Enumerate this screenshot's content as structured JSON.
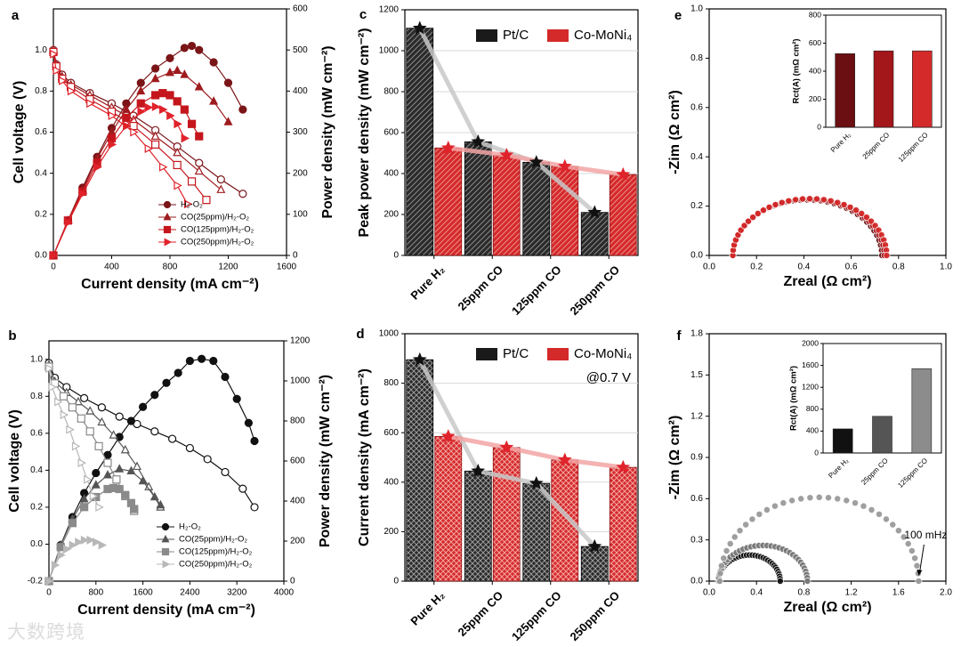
{
  "watermark": {
    "text": "大数跨境"
  },
  "chart_data": [
    {
      "panel": "a",
      "type": "line",
      "xlabel": "Current density (mA cm⁻²)",
      "ylabel": "Cell voltage (V)",
      "y2label": "Power density (mW cm⁻²)",
      "xlim": [
        0,
        1600
      ],
      "ylim": [
        0,
        1.2
      ],
      "y2lim": [
        0,
        600
      ],
      "xticks": [
        0,
        400,
        800,
        1200,
        1600
      ],
      "yticks": [
        0,
        0.2,
        0.4,
        0.6,
        0.8,
        1.0
      ],
      "y2ticks": [
        0,
        100,
        200,
        300,
        400,
        500,
        600
      ],
      "legend": [
        "H₂-O₂",
        "CO(25ppm)/H₂-O₂",
        "CO(125ppm)/H₂-O₂",
        "CO(250ppm)/H₂-O₂"
      ],
      "series": [
        {
          "name": "H₂-O₂",
          "color": "#7a1518",
          "marker": "circle",
          "voltage": {
            "x": [
              0,
              20,
              60,
              120,
              250,
              400,
              550,
              700,
              850,
              1000,
              1150,
              1300
            ],
            "y": [
              1.0,
              0.93,
              0.88,
              0.84,
              0.79,
              0.74,
              0.68,
              0.61,
              0.53,
              0.45,
              0.37,
              0.3
            ]
          },
          "power": {
            "x": [
              0,
              100,
              200,
              300,
              400,
              500,
              600,
              700,
              800,
              900,
              950,
              1000,
              1100,
              1200,
              1300
            ],
            "y": [
              0,
              85,
              165,
              240,
              310,
              370,
              420,
              455,
              480,
              505,
              510,
              500,
              470,
              420,
              355
            ]
          }
        },
        {
          "name": "CO(25ppm)/H₂-O₂",
          "color": "#9e1b1e",
          "marker": "triangle",
          "voltage": {
            "x": [
              0,
              20,
              60,
              120,
              250,
              400,
              550,
              700,
              850,
              1000,
              1150
            ],
            "y": [
              1.0,
              0.93,
              0.87,
              0.83,
              0.78,
              0.72,
              0.66,
              0.58,
              0.5,
              0.41,
              0.32
            ]
          },
          "power": {
            "x": [
              0,
              100,
              200,
              300,
              400,
              500,
              600,
              700,
              800,
              850,
              900,
              1000,
              1100,
              1200
            ],
            "y": [
              0,
              85,
              160,
              235,
              300,
              355,
              400,
              430,
              445,
              450,
              440,
              410,
              375,
              325
            ]
          }
        },
        {
          "name": "CO(125ppm)/H₂-O₂",
          "color": "#c4161c",
          "marker": "square",
          "voltage": {
            "x": [
              0,
              20,
              60,
              120,
              250,
              400,
              550,
              700,
              850,
              950,
              1050
            ],
            "y": [
              0.99,
              0.92,
              0.86,
              0.82,
              0.76,
              0.7,
              0.63,
              0.54,
              0.44,
              0.36,
              0.27
            ]
          },
          "power": {
            "x": [
              0,
              100,
              200,
              300,
              400,
              500,
              600,
              700,
              750,
              800,
              850,
              900,
              950,
              1000
            ],
            "y": [
              0,
              85,
              155,
              225,
              285,
              335,
              370,
              390,
              395,
              390,
              375,
              355,
              320,
              290
            ]
          }
        },
        {
          "name": "CO(250ppm)/H₂-O₂",
          "color": "#e0222a",
          "marker": "tri-right",
          "voltage": {
            "x": [
              0,
              20,
              60,
              120,
              250,
              400,
              550,
              650,
              750,
              850,
              920
            ],
            "y": [
              0.98,
              0.9,
              0.85,
              0.8,
              0.74,
              0.68,
              0.6,
              0.52,
              0.43,
              0.34,
              0.25
            ]
          },
          "power": {
            "x": [
              0,
              100,
              200,
              300,
              400,
              500,
              600,
              650,
              700,
              750,
              800,
              850,
              900
            ],
            "y": [
              0,
              80,
              150,
              215,
              270,
              315,
              350,
              360,
              362,
              355,
              340,
              320,
              285
            ]
          }
        }
      ]
    },
    {
      "panel": "b",
      "type": "line",
      "xlabel": "Current density (mA cm⁻²)",
      "ylabel": "Cell voltage (V)",
      "y2label": "Power density (mW cm⁻²)",
      "xlim": [
        0,
        4000
      ],
      "ylim": [
        -0.2,
        1.1
      ],
      "y2lim": [
        0,
        1200
      ],
      "xticks": [
        0,
        800,
        1600,
        2400,
        3200,
        4000
      ],
      "yticks": [
        -0.2,
        0.0,
        0.2,
        0.4,
        0.6,
        0.8,
        1.0
      ],
      "y2ticks": [
        0,
        200,
        400,
        600,
        800,
        1000,
        1200
      ],
      "legend": [
        "H₂-O₂",
        "CO(25ppm)/H₂-O₂",
        "CO(125ppm)/H₂-O₂",
        "CO(250ppm)/H₂-O₂"
      ],
      "series": [
        {
          "name": "H₂-O₂",
          "color": "#111111",
          "marker": "circle",
          "voltage": {
            "x": [
              0,
              100,
              300,
              600,
              900,
              1200,
              1500,
              1800,
              2100,
              2400,
              2700,
              3000,
              3300,
              3500
            ],
            "y": [
              0.98,
              0.9,
              0.85,
              0.79,
              0.74,
              0.69,
              0.65,
              0.61,
              0.57,
              0.52,
              0.46,
              0.39,
              0.3,
              0.2
            ]
          },
          "power": {
            "x": [
              0,
              200,
              400,
              600,
              800,
              1000,
              1200,
              1400,
              1600,
              1800,
              2000,
              2200,
              2400,
              2600,
              2800,
              3000,
              3200,
              3400,
              3500
            ],
            "y": [
              0,
              180,
              320,
              440,
              540,
              630,
              720,
              800,
              870,
              930,
              990,
              1040,
              1100,
              1110,
              1100,
              1020,
              910,
              790,
              700
            ]
          }
        },
        {
          "name": "CO(25ppm)/H₂-O₂",
          "color": "#555555",
          "marker": "triangle",
          "voltage": {
            "x": [
              0,
              100,
              300,
              500,
              700,
              900,
              1100,
              1300,
              1500,
              1700,
              1900
            ],
            "y": [
              0.97,
              0.88,
              0.82,
              0.77,
              0.72,
              0.66,
              0.59,
              0.51,
              0.42,
              0.31,
              0.2
            ]
          },
          "power": {
            "x": [
              0,
              200,
              400,
              600,
              800,
              1000,
              1200,
              1400,
              1600,
              1800,
              1900
            ],
            "y": [
              0,
              180,
              310,
              410,
              480,
              530,
              560,
              550,
              500,
              420,
              380
            ]
          }
        },
        {
          "name": "CO(125ppm)/H₂-O₂",
          "color": "#8a8a8a",
          "marker": "square",
          "voltage": {
            "x": [
              0,
              100,
              250,
              400,
              550,
              700,
              850,
              1000,
              1150,
              1300,
              1450
            ],
            "y": [
              0.96,
              0.87,
              0.8,
              0.74,
              0.68,
              0.61,
              0.53,
              0.44,
              0.35,
              0.26,
              0.18
            ]
          },
          "power": {
            "x": [
              0,
              200,
              400,
              600,
              800,
              1000,
              1100,
              1200,
              1300,
              1400,
              1450
            ],
            "y": [
              0,
              170,
              290,
              370,
              420,
              460,
              465,
              460,
              430,
              390,
              360
            ]
          }
        },
        {
          "name": "CO(250ppm)/H₂-O₂",
          "color": "#b8b8b8",
          "marker": "tri-right",
          "voltage": {
            "x": [
              0,
              50,
              150,
              250,
              350,
              450,
              550,
              650,
              750,
              850
            ],
            "y": [
              0.95,
              0.85,
              0.77,
              0.7,
              0.62,
              0.53,
              0.44,
              0.35,
              0.26,
              0.2
            ]
          },
          "power": {
            "x": [
              0,
              100,
              200,
              300,
              400,
              500,
              600,
              700,
              800,
              900
            ],
            "y": [
              0,
              80,
              130,
              160,
              180,
              195,
              205,
              205,
              195,
              180
            ]
          }
        }
      ]
    },
    {
      "panel": "c",
      "type": "bar",
      "ylabel": "Peak power density (mW cm⁻²)",
      "ylim": [
        0,
        1200
      ],
      "yticks": [
        0,
        200,
        400,
        600,
        800,
        1000,
        1200
      ],
      "categories": [
        "Pure H₂",
        "25ppm CO",
        "125ppm CO",
        "250ppm CO"
      ],
      "series": [
        {
          "name": "Pt/C",
          "color": "#1a1a1a",
          "values": [
            1110,
            555,
            455,
            210
          ]
        },
        {
          "name": "Co-MoNi₄",
          "color": "#d42a2a",
          "values": [
            525,
            490,
            435,
            395
          ]
        }
      ]
    },
    {
      "panel": "d",
      "type": "bar",
      "ylabel": "Current density (mA cm⁻²)",
      "annotation": "@0.7 V",
      "ylim": [
        0,
        1000
      ],
      "yticks": [
        0,
        200,
        400,
        600,
        800,
        1000
      ],
      "categories": [
        "Pure H₂",
        "25ppm CO",
        "125ppm CO",
        "250ppm CO"
      ],
      "series": [
        {
          "name": "Pt/C",
          "color": "#1a1a1a",
          "values": [
            895,
            445,
            395,
            140
          ]
        },
        {
          "name": "Co-MoNi₄",
          "color": "#d42a2a",
          "values": [
            585,
            540,
            490,
            460
          ]
        }
      ]
    },
    {
      "panel": "e",
      "type": "scatter",
      "xlabel": "Zreal (Ω cm²)",
      "ylabel": "-Zim (Ω cm²)",
      "xlim": [
        0,
        1.0
      ],
      "ylim": [
        0,
        1.0
      ],
      "xticks": [
        0.0,
        0.2,
        0.4,
        0.6,
        0.8,
        1.0
      ],
      "yticks": [
        0.0,
        0.2,
        0.4,
        0.6,
        0.8,
        1.0
      ],
      "arcs": [
        {
          "name": "Pure H₂",
          "color": "#6b0f12",
          "x_start": 0.1,
          "x_end": 0.73,
          "peak": 0.225
        },
        {
          "name": "25ppm CO",
          "color": "#a3161a",
          "x_start": 0.1,
          "x_end": 0.74,
          "peak": 0.228
        },
        {
          "name": "125ppm CO",
          "color": "#d42a2a",
          "x_start": 0.1,
          "x_end": 0.75,
          "peak": 0.23
        }
      ],
      "inset": {
        "type": "bar",
        "ylabel": "Rct(A) (mΩ cm²)",
        "ylim": [
          0,
          800
        ],
        "yticks": [
          0,
          200,
          400,
          600,
          800
        ],
        "categories": [
          "Pure H₂",
          "25ppm CO",
          "125ppm CO"
        ],
        "values": [
          525,
          545,
          545
        ],
        "colors": [
          "#6b0f12",
          "#a3161a",
          "#d42a2a"
        ]
      }
    },
    {
      "panel": "f",
      "type": "scatter",
      "xlabel": "Zreal (Ω cm²)",
      "ylabel": "-Zim (Ω cm²)",
      "annotation": "100 mHz",
      "xlim": [
        0,
        2.0
      ],
      "ylim": [
        0,
        1.8
      ],
      "xticks": [
        0.0,
        0.4,
        0.8,
        1.2,
        1.6,
        2.0
      ],
      "yticks": [
        0.0,
        0.3,
        0.6,
        0.9,
        1.2,
        1.5,
        1.8
      ],
      "arcs": [
        {
          "name": "Pure H₂",
          "color": "#111111",
          "x_start": 0.08,
          "x_end": 0.6,
          "peak": 0.19
        },
        {
          "name": "25ppm CO",
          "color": "#777777",
          "x_start": 0.08,
          "x_end": 0.83,
          "peak": 0.26
        },
        {
          "name": "125ppm CO",
          "color": "#9a9a9a",
          "x_start": 0.09,
          "x_end": 1.77,
          "peak": 0.61
        }
      ],
      "inset": {
        "type": "bar",
        "ylabel": "Rct(A) (mΩ cm²)",
        "ylim": [
          0,
          2000
        ],
        "yticks": [
          0,
          400,
          800,
          1200,
          1600,
          2000
        ],
        "categories": [
          "Pure H₂",
          "25ppm CO",
          "125ppm CO"
        ],
        "values": [
          440,
          670,
          1540
        ],
        "colors": [
          "#111111",
          "#555555",
          "#8c8c8c"
        ]
      }
    }
  ]
}
